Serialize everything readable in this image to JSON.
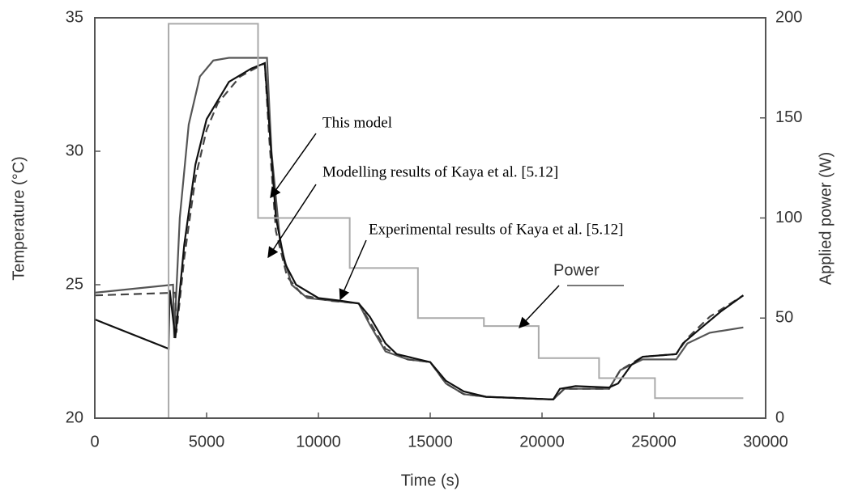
{
  "chart_data": {
    "type": "line",
    "xlabel": "Time (s)",
    "ylabel": "Temperature (°C)",
    "y2label": "Applied power (W)",
    "xlim": [
      0,
      30000
    ],
    "xticks": [
      0,
      5000,
      10000,
      15000,
      20000,
      25000,
      30000
    ],
    "ylim": [
      20,
      35
    ],
    "yticks": [
      20,
      25,
      30,
      35
    ],
    "y2lim": [
      0,
      200
    ],
    "y2ticks": [
      0,
      50,
      100,
      150,
      200
    ],
    "series": [
      {
        "name": "This model",
        "color": "#555555",
        "dash": false,
        "x": [
          0,
          3500,
          3550,
          3800,
          4200,
          4700,
          5300,
          6000,
          7700,
          7900,
          8300,
          8800,
          9500,
          11800,
          12300,
          13000,
          14000,
          15000,
          15700,
          16500,
          17500,
          20500,
          21000,
          23000,
          23500,
          24500,
          26000,
          26500,
          27500,
          29000
        ],
        "values": [
          24.7,
          25.0,
          23.0,
          27.5,
          31.0,
          32.8,
          33.4,
          33.5,
          33.5,
          30.0,
          26.5,
          25.0,
          24.5,
          24.3,
          23.5,
          22.5,
          22.2,
          22.1,
          21.3,
          20.9,
          20.8,
          20.7,
          21.1,
          21.1,
          21.8,
          22.2,
          22.2,
          22.8,
          23.2,
          23.4
        ]
      },
      {
        "name": "Modelling results of Kaya et al. [5.12]",
        "color": "#444444",
        "dash": true,
        "x": [
          0,
          3600,
          3650,
          4000,
          4500,
          5000,
          5500,
          6500,
          7600,
          7800,
          8100,
          8600,
          9300,
          10500,
          11800,
          12300,
          13000,
          14000,
          15000,
          15700,
          16500,
          17500,
          20500,
          21000,
          23000,
          23500,
          24500,
          26000,
          26500,
          27500,
          29000
        ],
        "values": [
          24.6,
          24.7,
          23.2,
          26.0,
          29.0,
          30.8,
          31.8,
          32.8,
          33.3,
          30.5,
          27.0,
          25.3,
          24.6,
          24.4,
          24.3,
          23.6,
          22.6,
          22.2,
          22.1,
          21.3,
          20.9,
          20.8,
          20.7,
          21.1,
          21.1,
          21.8,
          22.3,
          22.4,
          23.0,
          23.8,
          24.6
        ]
      },
      {
        "name": "Experimental results of Kaya et al. [5.12]",
        "color": "#111111",
        "dash": false,
        "x": [
          0,
          3300,
          3350,
          3600,
          4000,
          4500,
          5000,
          6000,
          7000,
          7600,
          7800,
          8100,
          8500,
          9000,
          10000,
          11000,
          11800,
          12300,
          13000,
          13500,
          14500,
          15000,
          15700,
          16500,
          17500,
          19000,
          20500,
          20800,
          21500,
          23000,
          23400,
          24000,
          24500,
          26000,
          26300,
          27000,
          28000,
          29000
        ],
        "values": [
          23.7,
          22.6,
          24.8,
          23.0,
          26.5,
          29.5,
          31.2,
          32.6,
          33.1,
          33.3,
          31,
          27.5,
          25.8,
          25.0,
          24.5,
          24.4,
          24.3,
          23.8,
          22.8,
          22.4,
          22.2,
          22.1,
          21.4,
          21.0,
          20.8,
          20.75,
          20.7,
          21.1,
          21.2,
          21.15,
          21.3,
          22.0,
          22.3,
          22.4,
          22.8,
          23.3,
          24.0,
          24.6
        ]
      },
      {
        "name": "Power",
        "color": "#aaaaaa",
        "dash": false,
        "axis": "y2",
        "x": [
          0,
          3300,
          3300,
          7300,
          7300,
          11400,
          11400,
          14450,
          14450,
          17400,
          17400,
          19850,
          19850,
          22550,
          22550,
          25050,
          25050,
          29000
        ],
        "values": [
          0,
          0,
          197,
          197,
          100,
          100,
          75,
          75,
          50,
          50,
          46,
          46,
          30,
          30,
          20,
          20,
          10,
          10
        ]
      }
    ]
  }
}
